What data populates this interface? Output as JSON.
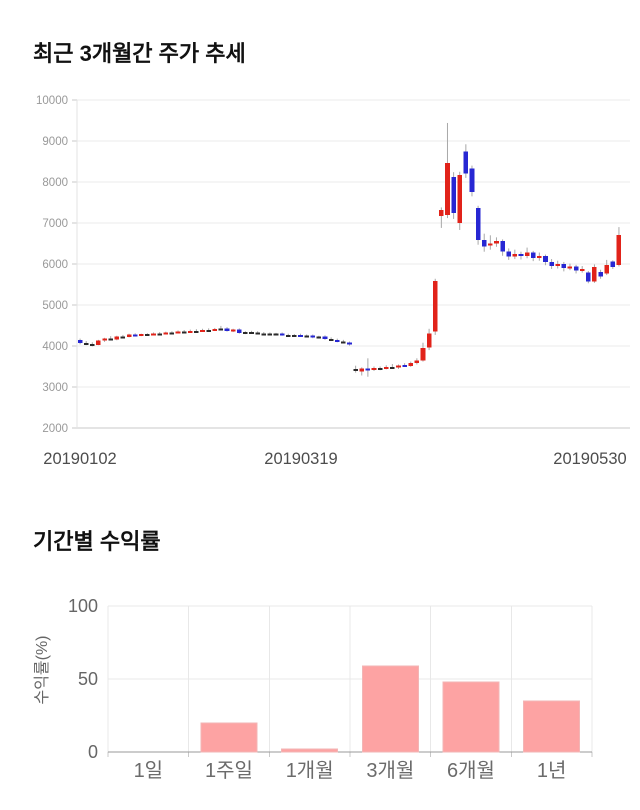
{
  "chart_data": [
    {
      "type": "candlestick",
      "title": "최근 3개월간 주가 추세",
      "ylim": [
        2000,
        10000
      ],
      "y_ticks": [
        10000,
        9000,
        8000,
        7000,
        6000,
        5000,
        4000,
        3000,
        2000
      ],
      "x_axis_labels": [
        "20190102",
        "20190319",
        "20190530"
      ],
      "grid": true,
      "candle_format": [
        "open",
        "high",
        "low",
        "close"
      ],
      "colors": {
        "up": "#e1231a",
        "down": "#2727d3",
        "doji": "#2a2a2a",
        "wick": "#a8a8a8",
        "grid": "#ebebeb",
        "axis": "#c9c9c9",
        "y_tick_label": "#999999",
        "x_tick_label": "#4d4d4d"
      },
      "candles": [
        [
          4150,
          4180,
          4040,
          4070
        ],
        [
          4070,
          4120,
          4020,
          4050
        ],
        [
          4050,
          4090,
          3990,
          4030
        ],
        [
          4030,
          4150,
          4020,
          4130
        ],
        [
          4130,
          4200,
          4100,
          4180
        ],
        [
          4180,
          4240,
          4150,
          4160
        ],
        [
          4160,
          4250,
          4140,
          4230
        ],
        [
          4230,
          4270,
          4200,
          4220
        ],
        [
          4220,
          4300,
          4210,
          4280
        ],
        [
          4280,
          4310,
          4230,
          4250
        ],
        [
          4250,
          4300,
          4240,
          4290
        ],
        [
          4290,
          4310,
          4250,
          4270
        ],
        [
          4270,
          4330,
          4260,
          4310
        ],
        [
          4310,
          4340,
          4280,
          4300
        ],
        [
          4300,
          4350,
          4290,
          4330
        ],
        [
          4330,
          4360,
          4300,
          4320
        ],
        [
          4320,
          4380,
          4310,
          4350
        ],
        [
          4350,
          4390,
          4320,
          4340
        ],
        [
          4340,
          4400,
          4330,
          4370
        ],
        [
          4370,
          4410,
          4340,
          4360
        ],
        [
          4360,
          4420,
          4350,
          4390
        ],
        [
          4390,
          4430,
          4360,
          4380
        ],
        [
          4380,
          4440,
          4370,
          4410
        ],
        [
          4410,
          4490,
          4390,
          4430
        ],
        [
          4430,
          4460,
          4350,
          4370
        ],
        [
          4370,
          4420,
          4340,
          4400
        ],
        [
          4400,
          4430,
          4300,
          4320
        ],
        [
          4320,
          4360,
          4290,
          4340
        ],
        [
          4340,
          4370,
          4300,
          4330
        ],
        [
          4330,
          4360,
          4290,
          4310
        ],
        [
          4310,
          4340,
          4280,
          4300
        ],
        [
          4300,
          4330,
          4260,
          4280
        ],
        [
          4280,
          4320,
          4270,
          4300
        ],
        [
          4300,
          4330,
          4250,
          4270
        ],
        [
          4270,
          4300,
          4230,
          4250
        ],
        [
          4250,
          4290,
          4240,
          4270
        ],
        [
          4270,
          4300,
          4220,
          4240
        ],
        [
          4240,
          4280,
          4210,
          4260
        ],
        [
          4260,
          4280,
          4190,
          4210
        ],
        [
          4210,
          4250,
          4180,
          4230
        ],
        [
          4230,
          4260,
          4150,
          4170
        ],
        [
          4170,
          4210,
          4130,
          4150
        ],
        [
          4150,
          4180,
          4090,
          4110
        ],
        [
          4110,
          4150,
          4060,
          4090
        ],
        [
          4090,
          4110,
          4010,
          4060
        ],
        [
          3430,
          3520,
          3350,
          3440
        ],
        [
          3380,
          3480,
          3280,
          3450
        ],
        [
          3450,
          3700,
          3250,
          3420
        ],
        [
          3420,
          3500,
          3390,
          3460
        ],
        [
          3460,
          3500,
          3410,
          3450
        ],
        [
          3450,
          3530,
          3430,
          3490
        ],
        [
          3490,
          3560,
          3450,
          3480
        ],
        [
          3480,
          3550,
          3440,
          3520
        ],
        [
          3540,
          3580,
          3490,
          3510
        ],
        [
          3510,
          3620,
          3490,
          3580
        ],
        [
          3580,
          3700,
          3550,
          3650
        ],
        [
          3650,
          4080,
          3620,
          3950
        ],
        [
          3960,
          4420,
          3900,
          4300
        ],
        [
          4350,
          5640,
          4270,
          5590
        ],
        [
          7170,
          7380,
          6880,
          7320
        ],
        [
          7200,
          9440,
          7120,
          8460
        ],
        [
          8120,
          8240,
          7100,
          7240
        ],
        [
          7000,
          8250,
          6830,
          8170
        ],
        [
          8740,
          8920,
          8100,
          8210
        ],
        [
          8330,
          8400,
          7650,
          7760
        ],
        [
          7360,
          7420,
          6470,
          6590
        ],
        [
          6590,
          6740,
          6300,
          6430
        ],
        [
          6470,
          6700,
          6350,
          6500
        ],
        [
          6500,
          6650,
          6420,
          6560
        ],
        [
          6560,
          6600,
          6200,
          6300
        ],
        [
          6300,
          6380,
          6100,
          6180
        ],
        [
          6180,
          6350,
          6120,
          6250
        ],
        [
          6250,
          6300,
          6110,
          6200
        ],
        [
          6200,
          6400,
          6140,
          6280
        ],
        [
          6280,
          6320,
          6070,
          6150
        ],
        [
          6150,
          6280,
          6080,
          6200
        ],
        [
          6200,
          6230,
          5970,
          6050
        ],
        [
          6050,
          6120,
          5880,
          5950
        ],
        [
          5950,
          6080,
          5890,
          6000
        ],
        [
          6000,
          6050,
          5820,
          5900
        ],
        [
          5900,
          6010,
          5850,
          5940
        ],
        [
          5940,
          5980,
          5770,
          5840
        ],
        [
          5840,
          5950,
          5790,
          5880
        ],
        [
          5790,
          5830,
          5530,
          5570
        ],
        [
          5570,
          5990,
          5540,
          5930
        ],
        [
          5810,
          5860,
          5640,
          5690
        ],
        [
          5770,
          6100,
          5730,
          5970
        ],
        [
          6060,
          6090,
          5880,
          5930
        ],
        [
          5980,
          6900,
          5940,
          6710
        ]
      ]
    },
    {
      "type": "bar",
      "title": "기간별 수익률",
      "categories": [
        "1일",
        "1주일",
        "1개월",
        "3개월",
        "6개월",
        "1년"
      ],
      "values": [
        0,
        20,
        2,
        59,
        48,
        35
      ],
      "ylabel": "수익률(%)",
      "ylim": [
        0,
        100
      ],
      "y_ticks": [
        100,
        50,
        0
      ],
      "grid": true,
      "colors": {
        "bar_fill": "#fda3a3",
        "bar_border": "#f2b5b5",
        "grid": "#e8e8e8",
        "axis": "#999999",
        "tick_label": "#666666",
        "category_label": "#6b6b6b",
        "axis_label": "#666666"
      }
    }
  ]
}
